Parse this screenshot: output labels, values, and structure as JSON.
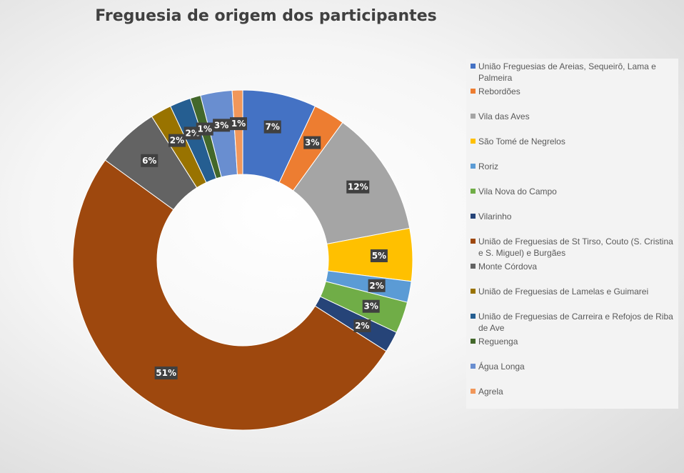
{
  "chart_data": {
    "type": "donut",
    "title": "Freguesia de origem dos participantes",
    "legend_position": "right",
    "series": [
      {
        "values": [
          7,
          3,
          12,
          5,
          2,
          3,
          2,
          51,
          6,
          2,
          2,
          1,
          3,
          1
        ],
        "data_labels": [
          "7%",
          "3%",
          "12%",
          "5%",
          "2%",
          "3%",
          "2%",
          "51%",
          "6%",
          "2%",
          "2%",
          "1%",
          "3%",
          "1%"
        ]
      }
    ],
    "categories": [
      "União Freguesias de Areias, Sequeirô, Lama e Palmeira",
      "Rebordões",
      "Vila das Aves",
      "São Tomé de Negrelos",
      "Roriz",
      "Vila Nova do Campo",
      "Vilarinho",
      "União de Freguesias de St Tirso, Couto (S. Cristina e S. Miguel) e Burgães",
      "Monte Córdova",
      "União de Freguesias de Lamelas e Guimarei",
      "União de Freguesias de Carreira e Refojos de Riba de Ave",
      "Reguenga",
      "Água Longa",
      "Agrela"
    ],
    "colors": [
      "#4472c4",
      "#ed7d31",
      "#a5a5a5",
      "#ffc000",
      "#5b9bd5",
      "#70ad47",
      "#264478",
      "#9e480e",
      "#636363",
      "#997300",
      "#255e91",
      "#43682b",
      "#698ed0",
      "#f1975a"
    ]
  }
}
